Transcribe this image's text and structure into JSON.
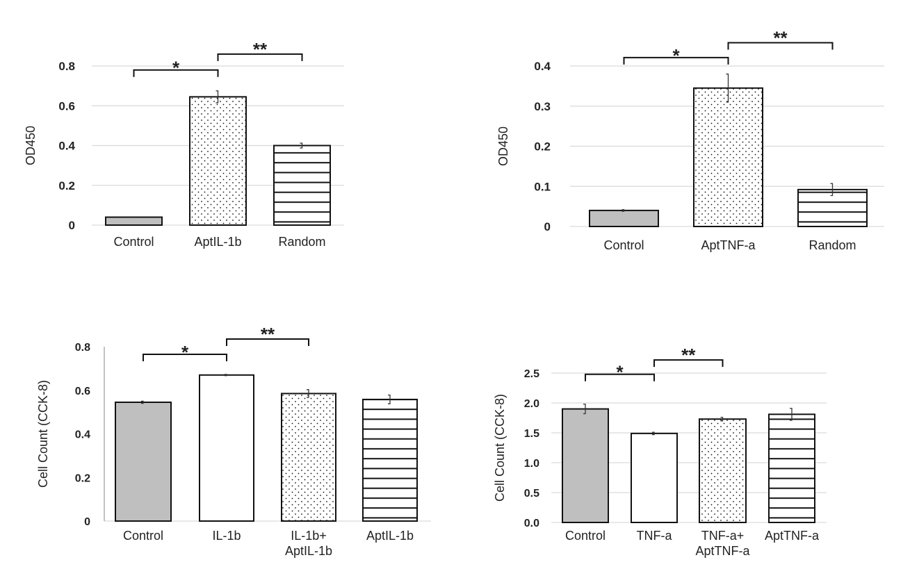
{
  "chart_data": [
    {
      "type": "bar",
      "ylabel": "OD450",
      "categories": [
        "Control",
        "AptIL-1b",
        "Random"
      ],
      "values": [
        0.04,
        0.645,
        0.4
      ],
      "errors": [
        0.002,
        0.03,
        0.012
      ],
      "patterns": [
        "gray",
        "dots",
        "hlines"
      ],
      "ylim": [
        0,
        0.8
      ],
      "yticks": [
        0,
        0.2,
        0.4,
        0.6,
        0.8
      ],
      "ytick_labels": [
        "0",
        "0.2",
        "0.4",
        "0.6",
        "0.8"
      ],
      "grid": true,
      "significance": [
        {
          "from": 0,
          "to": 1,
          "label": "*",
          "level": 0.78
        },
        {
          "from": 1,
          "to": 2,
          "label": "**",
          "level": 0.86
        }
      ]
    },
    {
      "type": "bar",
      "ylabel": "OD450",
      "categories": [
        "Control",
        "AptTNF-a",
        "Random"
      ],
      "values": [
        0.04,
        0.345,
        0.092
      ],
      "errors": [
        0.002,
        0.035,
        0.015
      ],
      "patterns": [
        "gray",
        "dots",
        "hlines"
      ],
      "ylim": [
        0,
        0.4
      ],
      "yticks": [
        0,
        0.1,
        0.2,
        0.3,
        0.4
      ],
      "ytick_labels": [
        "0",
        "0.1",
        "0.2",
        "0.3",
        "0.4"
      ],
      "grid": true,
      "significance": [
        {
          "from": 0,
          "to": 1,
          "label": "*",
          "level": 0.421
        },
        {
          "from": 1,
          "to": 2,
          "label": "**",
          "level": 0.458
        }
      ]
    },
    {
      "type": "bar",
      "ylabel": "Cell Count (CCK-8)",
      "categories": [
        "Control",
        "IL-1b",
        "IL-1b+\nAptIL-1b",
        "AptIL-1b"
      ],
      "values": [
        0.545,
        0.67,
        0.585,
        0.558
      ],
      "errors": [
        0.005,
        0.003,
        0.018,
        0.02
      ],
      "patterns": [
        "gray",
        "white",
        "dots",
        "hlines"
      ],
      "ylim": [
        0,
        0.8
      ],
      "yticks": [
        0,
        0.2,
        0.4,
        0.6,
        0.8
      ],
      "ytick_labels": [
        "0",
        "0.2",
        "0.4",
        "0.6",
        "0.8"
      ],
      "grid": false,
      "significance": [
        {
          "from": 0,
          "to": 1,
          "label": "*",
          "level": 0.765
        },
        {
          "from": 1,
          "to": 2,
          "label": "**",
          "level": 0.835
        }
      ]
    },
    {
      "type": "bar",
      "ylabel": "Cell Count (CCK-8)",
      "categories": [
        "Control",
        "TNF-a",
        "TNF-a+\nAptTNF-a",
        "AptTNF-a"
      ],
      "values": [
        1.9,
        1.49,
        1.73,
        1.81
      ],
      "errors": [
        0.08,
        0.02,
        0.03,
        0.1
      ],
      "patterns": [
        "gray",
        "white",
        "dots",
        "hlines"
      ],
      "ylim": [
        0,
        2.5
      ],
      "yticks": [
        0,
        0.5,
        1.0,
        1.5,
        2.0,
        2.5
      ],
      "ytick_labels": [
        "0.0",
        "0.5",
        "1.0",
        "1.5",
        "2.0",
        "2.5"
      ],
      "grid": true,
      "significance": [
        {
          "from": 0,
          "to": 1,
          "label": "*",
          "level": 2.48
        },
        {
          "from": 1,
          "to": 2,
          "label": "**",
          "level": 2.72
        }
      ]
    }
  ],
  "colors": {
    "control_fill": "#bfbfbf",
    "grid": "#d9d9d9",
    "ink": "#111111"
  }
}
